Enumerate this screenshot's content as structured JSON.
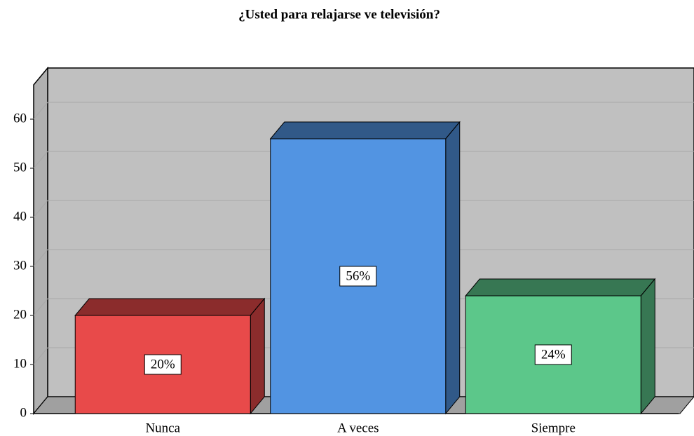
{
  "chart_data": {
    "type": "bar3d",
    "title": "¿Usted para relajarse ve televisión?",
    "categories": [
      "Nunca",
      "A veces",
      "Siempre"
    ],
    "values": [
      20,
      56,
      24
    ],
    "value_labels": [
      "20%",
      "56%",
      "24%"
    ],
    "colors": [
      "#e84a4a",
      "#5294e2",
      "#5cc78a"
    ],
    "ylim": [
      0,
      67
    ],
    "yticks": [
      0,
      10,
      20,
      30,
      40,
      50,
      60
    ],
    "grid": true
  }
}
